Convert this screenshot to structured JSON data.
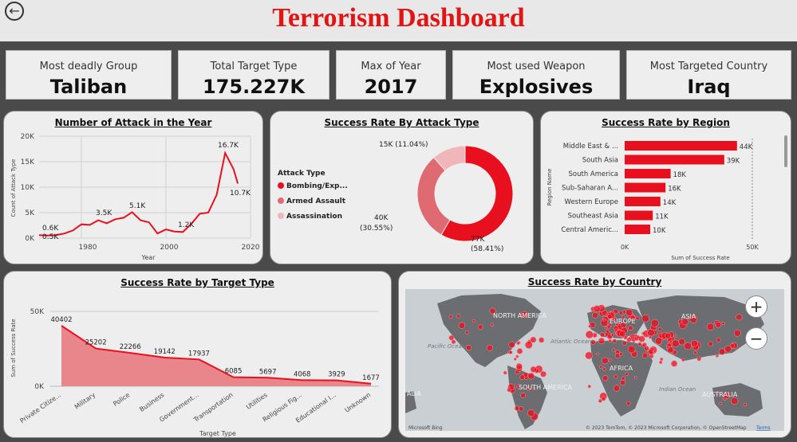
{
  "header": {
    "title": "Terrorism Dashboard",
    "back_icon": "back-arrow-icon"
  },
  "kpis": [
    {
      "label": "Most deadly Group",
      "value": "Taliban"
    },
    {
      "label": "Total Target Type",
      "value": "175.227K"
    },
    {
      "label": "Max of Year",
      "value": "2017"
    },
    {
      "label": "Most used Weapon",
      "value": "Explosives"
    },
    {
      "label": "Most Targeted Country",
      "value": "Iraq"
    }
  ],
  "charts": {
    "attacks_year": {
      "title": "Number of Attack in the Year",
      "xlabel": "Year",
      "ylabel": "Count of Attack Type",
      "yticks": [
        "20K",
        "15K",
        "10K",
        "5K",
        "0K"
      ],
      "xticks": [
        "1980",
        "2000",
        "2020"
      ],
      "annotations": [
        "0.6K",
        "0.5K",
        "3.5K",
        "5.1K",
        "1.2K",
        "16.7K",
        "10.7K"
      ]
    },
    "attack_type": {
      "title": "Success Rate By Attack Type",
      "legend_title": "Attack Type",
      "legend": [
        "Bombing/Exp...",
        "Armed Assault",
        "Assassination"
      ],
      "labels": {
        "bombing": "77K",
        "bombing_pct": "(58.41%)",
        "armed": "40K",
        "armed_pct": "(30.55%)",
        "assassination": "15K (11.04%)"
      }
    },
    "region": {
      "title": "Success Rate by Region",
      "ylabel": "Region Name",
      "xlabel": "Sum of Success Rate",
      "xticks": [
        "0K",
        "50K"
      ]
    },
    "target_type": {
      "title": "Success Rate by Target Type",
      "ylabel": "Sum of Success Rate",
      "xlabel": "Target Type",
      "yticks": [
        "50K",
        "0K"
      ]
    },
    "country": {
      "title": "Success Rate by Country",
      "map_labels": [
        "NORTH AMERICA",
        "Pacific Ocean",
        "Atlantic Ocean",
        "EUROPE",
        "ASIA",
        "AFRICA",
        "SOUTH AMERICA",
        "Indian Ocean",
        "AUSTRALIA",
        "ALIA"
      ],
      "attribution": "© 2023 TomTom, © 2023 Microsoft Corporation, © OpenStreetMap",
      "terms": "Terms",
      "bing": "Microsoft Bing",
      "zoom_in": "+",
      "zoom_out": "−"
    }
  },
  "colors": {
    "accent": "#e8101f",
    "mid": "#e06a72",
    "light": "#f0b6ba",
    "title_red": "#e31414"
  },
  "chart_data": [
    {
      "type": "line",
      "title": "Number of Attack in the Year",
      "xlabel": "Year",
      "ylabel": "Count of Attack Type",
      "ylim": [
        0,
        20000
      ],
      "xlim": [
        1970,
        2020
      ],
      "x": [
        1970,
        1972,
        1974,
        1976,
        1978,
        1980,
        1982,
        1984,
        1986,
        1988,
        1990,
        1992,
        1994,
        1996,
        1998,
        2000,
        2002,
        2004,
        2006,
        2008,
        2010,
        2012,
        2014,
        2016,
        2017
      ],
      "values": [
        600,
        500,
        600,
        900,
        1500,
        2700,
        2600,
        3500,
        2900,
        3700,
        4000,
        5100,
        3500,
        3100,
        900,
        1700,
        1300,
        1200,
        2800,
        4800,
        5000,
        8500,
        16700,
        13500,
        10700
      ]
    },
    {
      "type": "pie",
      "title": "Success Rate By Attack Type",
      "categories": [
        "Bombing/Explosion",
        "Armed Assault",
        "Assassination"
      ],
      "values": [
        77000,
        40000,
        15000
      ],
      "percent": [
        58.41,
        30.55,
        11.04
      ]
    },
    {
      "type": "bar",
      "title": "Success Rate by Region",
      "categories": [
        "Middle East & ...",
        "South Asia",
        "South America",
        "Sub-Saharan A...",
        "Western Europe",
        "Southeast Asia",
        "Central Americ..."
      ],
      "values": [
        44000,
        39000,
        18000,
        16000,
        14000,
        11000,
        10000
      ],
      "value_labels": [
        "44K",
        "39K",
        "18K",
        "16K",
        "14K",
        "11K",
        "10K"
      ],
      "xlabel": "Sum of Success Rate",
      "ylabel": "Region Name",
      "xlim": [
        0,
        55000
      ]
    },
    {
      "type": "area",
      "title": "Success Rate by Target Type",
      "categories": [
        "Private Citize...",
        "Military",
        "Police",
        "Business",
        "Government...",
        "Transportation",
        "Utilities",
        "Religious Fig...",
        "Educational I...",
        "Unknown"
      ],
      "values": [
        40402,
        25202,
        22266,
        19142,
        17937,
        6085,
        5697,
        4068,
        3929,
        1677
      ],
      "xlabel": "Target Type",
      "ylabel": "Sum of Success Rate",
      "ylim": [
        0,
        50000
      ]
    }
  ]
}
